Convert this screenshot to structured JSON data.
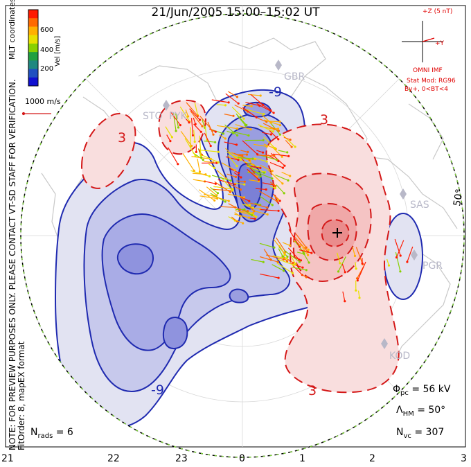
{
  "title": "21/Jun/2005 15:00–15:02 UT",
  "colorbar": {
    "title": "Vel [m/s]",
    "ticks": [
      "600",
      "400",
      "200"
    ],
    "colors": [
      "#ff1a00",
      "#ff6a00",
      "#ffb000",
      "#e8e000",
      "#88d000",
      "#20a040",
      "#208880",
      "#2050c0",
      "#1010d0"
    ]
  },
  "coordinates_label": "MLT coordinates",
  "vector_scale_label": "1000 m/s",
  "imf": {
    "z_label": "+Z (5 nT)",
    "y_label": "+Y",
    "source": "OMNI IMF",
    "model": "Stat Mod: RG96",
    "condition": "By+, 0<BT<4"
  },
  "note_lines": [
    "NOTE: FOR PREVIEW PURPOSES ONLY. PLEASE CONTACT VT-SD STAFF FOR VERIFICATION.",
    "FitOrder: 8, mapEX format"
  ],
  "stations": [
    "GBR",
    "STO",
    "PYK",
    "SAS",
    "PGR",
    "KOD"
  ],
  "latitude_label": "50°",
  "contour_labels": {
    "negative": "-9",
    "positive": "3"
  },
  "stats": {
    "phi_pc_label": "Φ",
    "phi_pc_sub": "pc",
    "phi_pc_value": "= 56 kV",
    "lambda_label": "Λ",
    "lambda_sub": "HM",
    "lambda_value": "= 50°",
    "nvc_label": "N",
    "nvc_sub": "vc",
    "nvc_value": "= 307",
    "nrads_label": "N",
    "nrads_sub": "rads",
    "nrads_value": "= 6"
  },
  "mlt_ticks": [
    "21",
    "22",
    "23",
    "0",
    "1",
    "2",
    "3"
  ],
  "colors": {
    "negative_fill": "#5a5fd8",
    "positive_fill": "#f07070",
    "negative_line": "#1f2ab0",
    "positive_line": "#d41818",
    "boundary": "#7ccf3a",
    "coast": "#c8c8c8"
  }
}
